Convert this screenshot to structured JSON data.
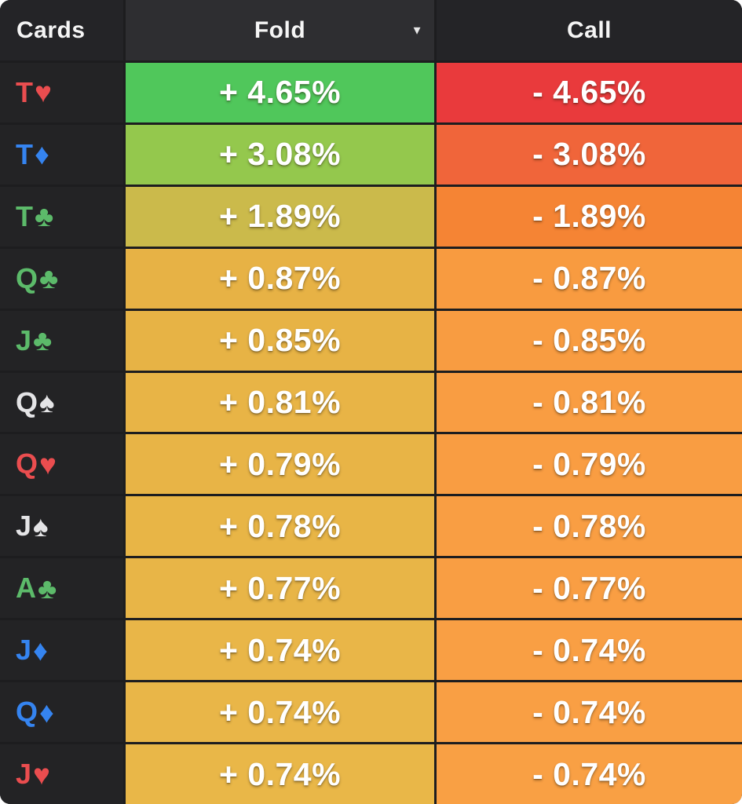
{
  "header": {
    "cards": "Cards",
    "fold": "Fold",
    "call": "Call"
  },
  "icons": {
    "dropdown": "▼"
  },
  "colors": {
    "page_bg": "#ffffff",
    "grid_line": "#1d1d1f",
    "cards_column_bg": "#232325",
    "header_bg": "#242427",
    "header_fold_selected_bg": "#2e2e31",
    "text": "#ffffff"
  },
  "suits": {
    "hearts": {
      "glyph": "♥",
      "color": "#ea4d4f"
    },
    "diamonds": {
      "glyph": "♦",
      "color": "#3584f0"
    },
    "clubs": {
      "glyph": "♣",
      "color": "#5cba6a"
    },
    "spades": {
      "glyph": "♠",
      "color": "#e4e4e6"
    }
  },
  "rows": [
    {
      "rank": "T",
      "suit": "hearts",
      "fold": "+ 4.65%",
      "call": "- 4.65%",
      "fold_color": "#50c75b",
      "call_color": "#e93a3c"
    },
    {
      "rank": "T",
      "suit": "diamonds",
      "fold": "+ 3.08%",
      "call": "- 3.08%",
      "fold_color": "#94c84d",
      "call_color": "#f0653a"
    },
    {
      "rank": "T",
      "suit": "clubs",
      "fold": "+ 1.89%",
      "call": "- 1.89%",
      "fold_color": "#cbba4b",
      "call_color": "#f58434"
    },
    {
      "rank": "Q",
      "suit": "clubs",
      "fold": "+ 0.87%",
      "call": "- 0.87%",
      "fold_color": "#e7b245",
      "call_color": "#f89b40"
    },
    {
      "rank": "J",
      "suit": "clubs",
      "fold": "+ 0.85%",
      "call": "- 0.85%",
      "fold_color": "#e7b345",
      "call_color": "#f89c41"
    },
    {
      "rank": "Q",
      "suit": "spades",
      "fold": "+ 0.81%",
      "call": "- 0.81%",
      "fold_color": "#e8b446",
      "call_color": "#f99d42"
    },
    {
      "rank": "Q",
      "suit": "hearts",
      "fold": "+ 0.79%",
      "call": "- 0.79%",
      "fold_color": "#e8b446",
      "call_color": "#f99d42"
    },
    {
      "rank": "J",
      "suit": "spades",
      "fold": "+ 0.78%",
      "call": "- 0.78%",
      "fold_color": "#e8b546",
      "call_color": "#f99e43"
    },
    {
      "rank": "A",
      "suit": "clubs",
      "fold": "+ 0.77%",
      "call": "- 0.77%",
      "fold_color": "#e8b547",
      "call_color": "#f99e43"
    },
    {
      "rank": "J",
      "suit": "diamonds",
      "fold": "+ 0.74%",
      "call": "- 0.74%",
      "fold_color": "#e9b648",
      "call_color": "#f99f44"
    },
    {
      "rank": "Q",
      "suit": "diamonds",
      "fold": "+ 0.74%",
      "call": "- 0.74%",
      "fold_color": "#e9b648",
      "call_color": "#f99f44"
    },
    {
      "rank": "J",
      "suit": "hearts",
      "fold": "+ 0.74%",
      "call": "- 0.74%",
      "fold_color": "#e9b748",
      "call_color": "#f9a044"
    }
  ]
}
